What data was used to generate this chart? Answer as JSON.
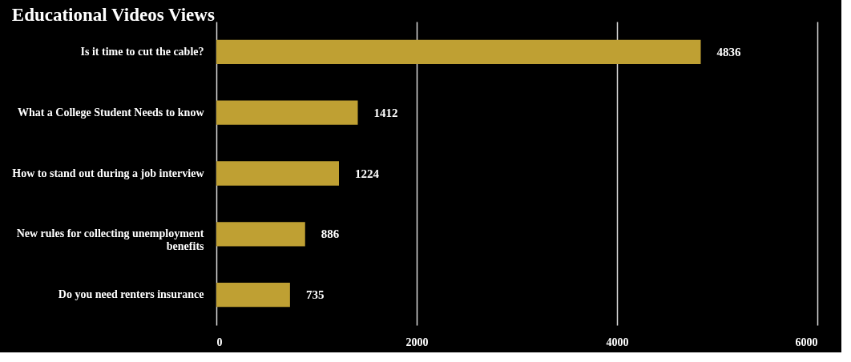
{
  "chart_data": {
    "type": "bar",
    "orientation": "horizontal",
    "title": "Educational Videos Views",
    "categories": [
      "Is it time to cut the cable?",
      "What a College Student Needs to know",
      "How to stand out during a job interview",
      "New rules for collecting unemployment benefits",
      "Do you need renters insurance"
    ],
    "values": [
      4836,
      1412,
      1224,
      886,
      735
    ],
    "color": "#bfa033",
    "xlim": [
      0,
      6000
    ],
    "xticks": [
      0,
      2000,
      4000,
      6000
    ],
    "grid": "x",
    "data_labels": true
  }
}
